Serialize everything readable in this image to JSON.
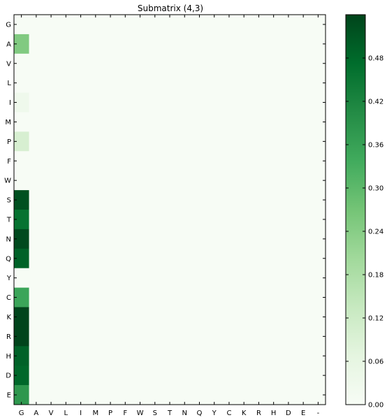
{
  "chart_data": {
    "type": "heatmap",
    "title": "Submatrix (4,3)",
    "xlabel": "",
    "ylabel": "",
    "x_categories": [
      "G",
      "A",
      "V",
      "L",
      "I",
      "M",
      "P",
      "F",
      "W",
      "S",
      "T",
      "N",
      "Q",
      "Y",
      "C",
      "K",
      "R",
      "H",
      "D",
      "E",
      "-"
    ],
    "y_categories": [
      "G",
      "A",
      "V",
      "L",
      "I",
      "M",
      "P",
      "F",
      "W",
      "S",
      "T",
      "N",
      "Q",
      "Y",
      "C",
      "K",
      "R",
      "H",
      "D",
      "E"
    ],
    "column_values": {
      "G": [
        0.0,
        0.25,
        0.0,
        0.0,
        0.03,
        0.0,
        0.1,
        0.0,
        0.0,
        0.52,
        0.46,
        0.53,
        0.49,
        0.0,
        0.35,
        0.54,
        0.54,
        0.49,
        0.48,
        0.38
      ]
    },
    "other_columns_value": 0.0,
    "colorbar": {
      "colormap": "Greens",
      "min": 0.0,
      "max": 0.54,
      "ticks": [
        "0.00",
        "0.06",
        "0.12",
        "0.18",
        "0.24",
        "0.30",
        "0.36",
        "0.42",
        "0.48"
      ]
    },
    "grid": false
  }
}
